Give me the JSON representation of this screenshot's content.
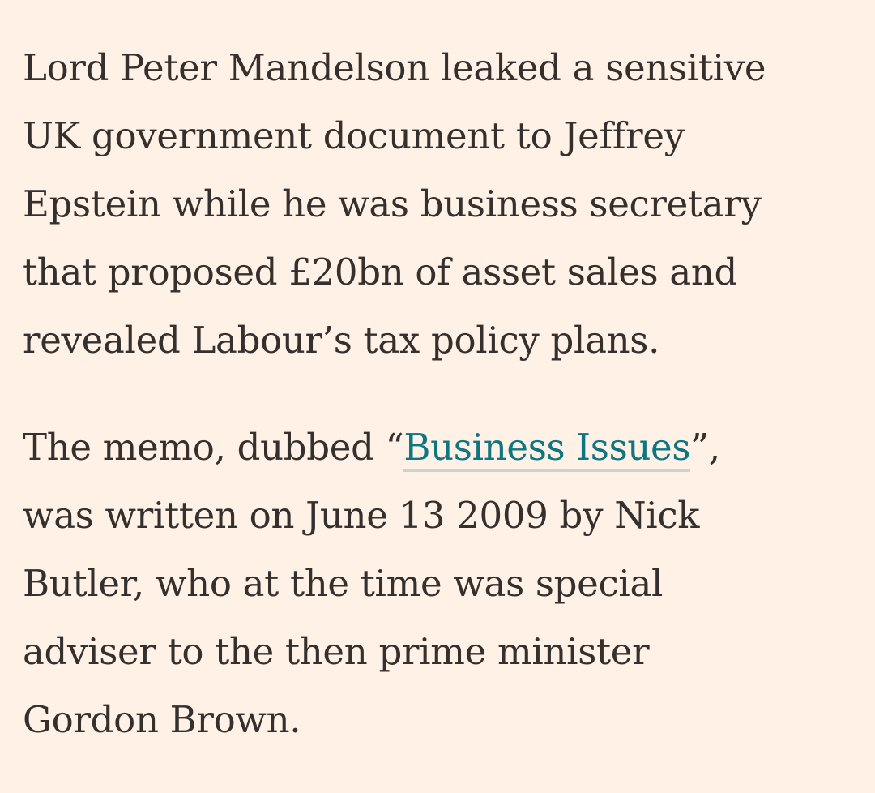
{
  "article": {
    "paragraph1": {
      "lines": [
        "Lord Peter Mandelson leaked a sensitive",
        "UK government document to Jeffrey",
        "Epstein while he was business secretary",
        "that proposed £20bn of asset sales and",
        "revealed Labour’s tax policy plans."
      ]
    },
    "paragraph2": {
      "line1_before": "The memo, dubbed “",
      "link_text": "Business Issues",
      "line1_after": "”,",
      "lines": [
        "was written on June 13 2009 by Nick",
        "Butler, who at the time was special",
        "adviser to the then prime minister",
        "Gordon Brown."
      ]
    }
  },
  "colors": {
    "background": "#FFF1E5",
    "text": "#33302E",
    "link": "#0D7680",
    "link_underline": "#C8D4D2"
  }
}
